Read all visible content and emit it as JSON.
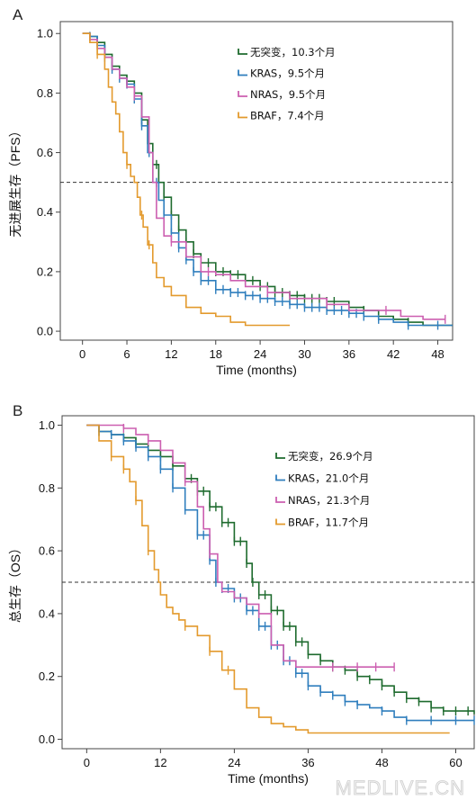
{
  "watermark": "MEDLIVE.CN",
  "chart_data": [
    {
      "type": "line",
      "panel_label": "A",
      "xlabel": "Time (months)",
      "ylabel": "无进展生存（PFS）",
      "xlim": [
        -3,
        50
      ],
      "ylim": [
        -0.03,
        1.04
      ],
      "xticks": [
        0,
        6,
        12,
        18,
        24,
        30,
        36,
        42,
        48
      ],
      "yticks": [
        "0.0",
        "0.2",
        "0.4",
        "0.6",
        "0.8",
        "1.0"
      ],
      "reference_line_y": 0.5,
      "legend_position": "top-right",
      "series": [
        {
          "name": "无突变，10.3个月",
          "color": "#1e6b2e",
          "x": [
            0,
            1,
            2,
            3,
            4,
            5,
            6,
            7,
            8,
            8.8,
            9.5,
            10.3,
            11,
            12,
            13,
            14,
            15,
            16,
            18,
            20,
            22,
            24,
            26,
            28,
            30,
            33,
            36,
            38,
            40,
            42,
            44,
            46,
            48,
            50
          ],
          "y": [
            1.0,
            0.99,
            0.97,
            0.93,
            0.89,
            0.86,
            0.84,
            0.8,
            0.71,
            0.63,
            0.56,
            0.5,
            0.45,
            0.39,
            0.34,
            0.3,
            0.26,
            0.23,
            0.2,
            0.19,
            0.17,
            0.15,
            0.13,
            0.12,
            0.11,
            0.1,
            0.08,
            0.07,
            0.05,
            0.04,
            0.03,
            0.02,
            0.02,
            0.02
          ],
          "censor_x": [
            1,
            2,
            3,
            4,
            5,
            6,
            7,
            8,
            9,
            10,
            11,
            12,
            13,
            14,
            15,
            16,
            17,
            18,
            19,
            20,
            21,
            22,
            23,
            24,
            25,
            26,
            27,
            28,
            29,
            30,
            31,
            32,
            33,
            34,
            36,
            38,
            40,
            44
          ]
        },
        {
          "name": "KRAS，9.5个月",
          "color": "#2f7ebd",
          "x": [
            0,
            1,
            2,
            3,
            4,
            5,
            6,
            7,
            8,
            8.8,
            9.5,
            10.3,
            11,
            12,
            13,
            14,
            15,
            16,
            18,
            20,
            22,
            24,
            26,
            28,
            30,
            33,
            36,
            38,
            40,
            42,
            44,
            46,
            48,
            50
          ],
          "y": [
            1.0,
            0.99,
            0.96,
            0.92,
            0.88,
            0.85,
            0.83,
            0.78,
            0.69,
            0.6,
            0.5,
            0.44,
            0.39,
            0.33,
            0.28,
            0.24,
            0.2,
            0.17,
            0.14,
            0.13,
            0.12,
            0.11,
            0.1,
            0.09,
            0.08,
            0.07,
            0.06,
            0.05,
            0.04,
            0.03,
            0.02,
            0.02,
            0.02,
            0.02
          ],
          "censor_x": [
            1,
            2,
            3,
            4,
            5,
            6,
            7,
            8,
            9,
            10,
            11,
            12,
            13,
            14,
            15,
            16,
            17,
            18,
            19,
            20,
            21,
            22,
            23,
            24,
            25,
            26,
            27,
            28,
            29,
            30,
            31,
            32,
            33,
            34,
            35,
            36,
            37,
            38,
            40,
            44,
            48
          ]
        },
        {
          "name": "NRAS，9.5个月",
          "color": "#cc5fb0",
          "x": [
            0,
            1,
            2,
            3,
            4,
            5,
            6,
            7,
            8,
            9,
            9.5,
            10,
            11,
            12,
            14,
            16,
            18,
            20,
            22,
            25,
            28,
            30,
            33,
            36,
            38,
            39,
            43,
            46,
            49
          ],
          "y": [
            1.0,
            0.98,
            0.95,
            0.92,
            0.88,
            0.85,
            0.82,
            0.79,
            0.72,
            0.6,
            0.5,
            0.38,
            0.32,
            0.3,
            0.25,
            0.2,
            0.19,
            0.17,
            0.15,
            0.13,
            0.11,
            0.11,
            0.09,
            0.07,
            0.07,
            0.07,
            0.05,
            0.04,
            0.04
          ],
          "censor_x": [
            7,
            12,
            17,
            25,
            33,
            41,
            49
          ]
        },
        {
          "name": "BRAF，7.4个月",
          "color": "#e39a2d",
          "x": [
            0,
            1,
            2,
            3,
            3.5,
            4,
            4.5,
            5,
            5.5,
            6,
            6.5,
            7,
            7.4,
            7.8,
            8.2,
            8.8,
            9.5,
            10,
            11,
            12,
            14,
            16,
            18,
            20,
            22,
            24,
            26,
            28
          ],
          "y": [
            1.0,
            0.97,
            0.93,
            0.88,
            0.82,
            0.77,
            0.73,
            0.67,
            0.6,
            0.56,
            0.52,
            0.5,
            0.45,
            0.39,
            0.35,
            0.29,
            0.23,
            0.18,
            0.15,
            0.12,
            0.08,
            0.06,
            0.05,
            0.03,
            0.02,
            0.02,
            0.02,
            0.02
          ],
          "censor_x": [
            2,
            6,
            8,
            9
          ]
        }
      ]
    },
    {
      "type": "line",
      "panel_label": "B",
      "xlabel": "Time (months)",
      "ylabel": "总生存（OS）",
      "xlim": [
        -4,
        63
      ],
      "ylim": [
        -0.03,
        1.03
      ],
      "xticks": [
        0,
        12,
        24,
        36,
        48,
        60
      ],
      "yticks": [
        "0.0",
        "0.2",
        "0.4",
        "0.6",
        "0.8",
        "1.0"
      ],
      "reference_line_y": 0.5,
      "legend_position": "top-right",
      "series": [
        {
          "name": "无突变，26.9个月",
          "color": "#1e6b2e",
          "x": [
            0,
            2,
            4,
            6,
            8,
            10,
            12,
            14,
            16,
            18,
            20,
            22,
            24,
            26,
            26.9,
            28,
            30,
            32,
            34,
            36,
            38,
            40,
            42,
            44,
            46,
            48,
            50,
            52,
            54,
            56,
            58,
            60,
            63
          ],
          "y": [
            1.0,
            0.98,
            0.97,
            0.96,
            0.94,
            0.92,
            0.9,
            0.87,
            0.83,
            0.79,
            0.74,
            0.69,
            0.63,
            0.56,
            0.5,
            0.46,
            0.41,
            0.36,
            0.31,
            0.27,
            0.25,
            0.23,
            0.22,
            0.2,
            0.19,
            0.17,
            0.15,
            0.13,
            0.12,
            0.1,
            0.09,
            0.09,
            0.08
          ],
          "censor_x": [
            2,
            4,
            6,
            8,
            10,
            12,
            14,
            16,
            17,
            18,
            19,
            20,
            21,
            22,
            23,
            24,
            25,
            26,
            27,
            28,
            29,
            30,
            31,
            32,
            33,
            34,
            35,
            36,
            38,
            40,
            42,
            44,
            46,
            48,
            50,
            52,
            54,
            56,
            58,
            60,
            62
          ]
        },
        {
          "name": "KRAS，21.0个月",
          "color": "#2f7ebd",
          "x": [
            0,
            2,
            4,
            6,
            8,
            10,
            12,
            14,
            16,
            18,
            20,
            21,
            22,
            24,
            26,
            28,
            30,
            32,
            34,
            36,
            38,
            40,
            42,
            44,
            46,
            48,
            50,
            52,
            54,
            56,
            58,
            60,
            63
          ],
          "y": [
            1.0,
            0.98,
            0.97,
            0.95,
            0.93,
            0.9,
            0.86,
            0.8,
            0.73,
            0.65,
            0.57,
            0.5,
            0.48,
            0.45,
            0.41,
            0.36,
            0.3,
            0.25,
            0.21,
            0.17,
            0.15,
            0.14,
            0.12,
            0.11,
            0.1,
            0.09,
            0.07,
            0.06,
            0.06,
            0.06,
            0.06,
            0.06,
            0.06
          ],
          "censor_x": [
            2,
            4,
            6,
            8,
            10,
            12,
            14,
            16,
            18,
            19,
            20,
            21,
            22,
            23,
            24,
            25,
            26,
            27,
            28,
            29,
            30,
            31,
            32,
            33,
            34,
            35,
            36,
            38,
            40,
            42,
            44,
            48,
            52,
            56,
            60,
            63
          ]
        },
        {
          "name": "NRAS，21.3个月",
          "color": "#cc5fb0",
          "x": [
            0,
            2,
            4,
            6,
            8,
            10,
            12,
            14,
            16,
            18,
            19,
            20,
            21.3,
            22,
            24,
            26,
            28,
            30,
            32,
            34,
            36,
            40,
            44,
            47,
            50
          ],
          "y": [
            1.0,
            1.0,
            1.0,
            0.99,
            0.97,
            0.95,
            0.92,
            0.88,
            0.82,
            0.74,
            0.67,
            0.59,
            0.5,
            0.47,
            0.45,
            0.43,
            0.4,
            0.3,
            0.25,
            0.23,
            0.23,
            0.23,
            0.23,
            0.23,
            0.23
          ],
          "censor_x": [
            6,
            10,
            16,
            20,
            28,
            40,
            44,
            47,
            50
          ]
        },
        {
          "name": "BRAF，11.7个月",
          "color": "#e39a2d",
          "x": [
            0,
            2,
            4,
            6,
            7,
            8,
            9,
            10,
            11,
            11.7,
            12,
            13,
            14,
            15,
            16,
            18,
            20,
            22,
            24,
            26,
            28,
            30,
            32,
            34,
            36,
            40,
            44,
            48,
            52,
            56,
            59
          ],
          "y": [
            1.0,
            0.95,
            0.9,
            0.86,
            0.82,
            0.76,
            0.68,
            0.6,
            0.54,
            0.5,
            0.46,
            0.42,
            0.4,
            0.38,
            0.36,
            0.33,
            0.28,
            0.22,
            0.16,
            0.1,
            0.07,
            0.05,
            0.04,
            0.03,
            0.02,
            0.02,
            0.02,
            0.02,
            0.02,
            0.02,
            0.02
          ],
          "censor_x": [
            4,
            6,
            8,
            10,
            16,
            20,
            23
          ]
        }
      ]
    }
  ]
}
